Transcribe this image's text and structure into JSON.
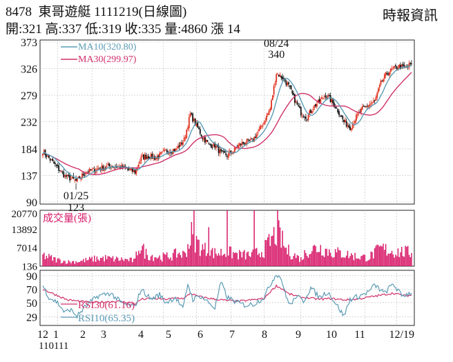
{
  "header": {
    "code": "8478",
    "name": "東哥遊艇",
    "date_label": "1111219(日線圖)",
    "source": "時報資訊",
    "ohlc": "開:321 高:337 低:319 收:335 量:4860 漲 14"
  },
  "chart_data": [
    {
      "type": "candlestick",
      "y_ticks": [
        373,
        326,
        279,
        232,
        184,
        137,
        90
      ],
      "ylim": [
        90,
        373
      ],
      "x_ticks": [
        "12",
        "1",
        "2",
        "3",
        "4",
        "5",
        "6",
        "7",
        "8",
        "9",
        "10",
        "11",
        "12/19"
      ],
      "x_sub_label": "110111",
      "legend": [
        {
          "label": "MA10(320.80)",
          "color": "#5b9bb5"
        },
        {
          "label": "MA30(299.97)",
          "color": "#d0306a"
        }
      ],
      "annotations": [
        {
          "date": "08/24",
          "value": "340"
        },
        {
          "date": "01/25",
          "value": "123"
        }
      ],
      "up_color": "#e0301e",
      "down_color": "#111111",
      "close_anchors": [
        [
          0,
          180
        ],
        [
          8,
          160
        ],
        [
          18,
          136
        ],
        [
          27,
          127
        ],
        [
          35,
          143
        ],
        [
          45,
          149
        ],
        [
          55,
          154
        ],
        [
          65,
          151
        ],
        [
          75,
          143
        ],
        [
          80,
          168
        ],
        [
          85,
          171
        ],
        [
          92,
          168
        ],
        [
          100,
          180
        ],
        [
          108,
          182
        ],
        [
          115,
          200
        ],
        [
          120,
          245
        ],
        [
          125,
          225
        ],
        [
          130,
          205
        ],
        [
          135,
          192
        ],
        [
          140,
          190
        ],
        [
          145,
          176
        ],
        [
          150,
          173
        ],
        [
          155,
          180
        ],
        [
          160,
          192
        ],
        [
          165,
          196
        ],
        [
          170,
          198
        ],
        [
          175,
          213
        ],
        [
          180,
          232
        ],
        [
          185,
          255
        ],
        [
          190,
          318
        ],
        [
          195,
          310
        ],
        [
          200,
          295
        ],
        [
          205,
          270
        ],
        [
          210,
          248
        ],
        [
          215,
          240
        ],
        [
          220,
          258
        ],
        [
          225,
          268
        ],
        [
          230,
          280
        ],
        [
          235,
          268
        ],
        [
          240,
          252
        ],
        [
          245,
          232
        ],
        [
          250,
          222
        ],
        [
          255,
          240
        ],
        [
          260,
          255
        ],
        [
          265,
          262
        ],
        [
          270,
          268
        ],
        [
          275,
          300
        ],
        [
          280,
          318
        ],
        [
          285,
          325
        ],
        [
          290,
          330
        ],
        [
          295,
          327
        ],
        [
          300,
          335
        ]
      ],
      "ma10_last": 320.8,
      "ma30_last": 299.97
    },
    {
      "type": "bar",
      "title": "成交量(張)",
      "y_ticks": [
        20770,
        13892,
        7014,
        136
      ],
      "ylim": [
        0,
        20770
      ],
      "color": "#d81b6a",
      "last_volume": 4860,
      "volume_anchors": [
        [
          0,
          4000
        ],
        [
          10,
          2500
        ],
        [
          20,
          1600
        ],
        [
          30,
          1800
        ],
        [
          40,
          2600
        ],
        [
          50,
          3000
        ],
        [
          60,
          2600
        ],
        [
          70,
          2300
        ],
        [
          75,
          2000
        ],
        [
          78,
          8000
        ],
        [
          85,
          4200
        ],
        [
          95,
          3300
        ],
        [
          105,
          3800
        ],
        [
          110,
          4800
        ],
        [
          115,
          4300
        ],
        [
          118,
          7500
        ],
        [
          121,
          11500
        ],
        [
          125,
          9000
        ],
        [
          130,
          6500
        ],
        [
          140,
          4800
        ],
        [
          150,
          5200
        ],
        [
          160,
          4200
        ],
        [
          170,
          4100
        ],
        [
          180,
          6000
        ],
        [
          185,
          9000
        ],
        [
          190,
          12500
        ],
        [
          193,
          11000
        ],
        [
          198,
          6000
        ],
        [
          205,
          4000
        ],
        [
          210,
          2600
        ],
        [
          215,
          5800
        ],
        [
          225,
          7000
        ],
        [
          235,
          5200
        ],
        [
          245,
          4600
        ],
        [
          255,
          3600
        ],
        [
          265,
          3200
        ],
        [
          275,
          6500
        ],
        [
          285,
          5500
        ],
        [
          300,
          5000
        ]
      ],
      "spikes": [
        [
          123,
          20770
        ],
        [
          150,
          20770
        ],
        [
          172,
          20770
        ],
        [
          191,
          20770
        ],
        [
          135,
          14500
        ]
      ]
    },
    {
      "type": "line",
      "y_ticks": [
        90,
        70,
        50,
        29
      ],
      "ylim": [
        16,
        98
      ],
      "series": [
        {
          "name": "RSI30(61.16)",
          "color": "#d0306a",
          "anchors": [
            [
              0,
              70
            ],
            [
              10,
              62
            ],
            [
              20,
              54
            ],
            [
              30,
              52
            ],
            [
              40,
              50
            ],
            [
              50,
              51
            ],
            [
              60,
              52
            ],
            [
              70,
              50
            ],
            [
              75,
              48
            ],
            [
              80,
              55
            ],
            [
              90,
              56
            ],
            [
              100,
              55
            ],
            [
              110,
              57
            ],
            [
              115,
              56
            ],
            [
              120,
              64
            ],
            [
              125,
              60
            ],
            [
              130,
              58
            ],
            [
              140,
              55
            ],
            [
              150,
              53
            ],
            [
              160,
              52
            ],
            [
              170,
              54
            ],
            [
              180,
              56
            ],
            [
              185,
              66
            ],
            [
              190,
              75
            ],
            [
              195,
              70
            ],
            [
              200,
              63
            ],
            [
              210,
              58
            ],
            [
              215,
              57
            ],
            [
              225,
              55
            ],
            [
              235,
              56
            ],
            [
              245,
              54
            ],
            [
              255,
              55
            ],
            [
              265,
              58
            ],
            [
              275,
              61
            ],
            [
              285,
              64
            ],
            [
              295,
              60
            ],
            [
              300,
              61
            ]
          ]
        },
        {
          "name": "RSI10(65.35)",
          "color": "#5b9bb5",
          "anchors": [
            [
              0,
              75
            ],
            [
              5,
              58
            ],
            [
              12,
              50
            ],
            [
              18,
              35
            ],
            [
              22,
              40
            ],
            [
              28,
              30
            ],
            [
              35,
              45
            ],
            [
              45,
              60
            ],
            [
              55,
              64
            ],
            [
              65,
              48
            ],
            [
              75,
              44
            ],
            [
              80,
              70
            ],
            [
              88,
              55
            ],
            [
              95,
              62
            ],
            [
              100,
              50
            ],
            [
              108,
              58
            ],
            [
              114,
              40
            ],
            [
              118,
              78
            ],
            [
              122,
              55
            ],
            [
              128,
              60
            ],
            [
              135,
              50
            ],
            [
              140,
              42
            ],
            [
              145,
              80
            ],
            [
              150,
              58
            ],
            [
              158,
              50
            ],
            [
              165,
              46
            ],
            [
              172,
              48
            ],
            [
              180,
              58
            ],
            [
              186,
              80
            ],
            [
              190,
              93
            ],
            [
              194,
              86
            ],
            [
              198,
              58
            ],
            [
              202,
              46
            ],
            [
              206,
              60
            ],
            [
              212,
              52
            ],
            [
              218,
              72
            ],
            [
              225,
              58
            ],
            [
              232,
              66
            ],
            [
              240,
              44
            ],
            [
              245,
              30
            ],
            [
              250,
              55
            ],
            [
              258,
              60
            ],
            [
              265,
              66
            ],
            [
              270,
              76
            ],
            [
              278,
              64
            ],
            [
              285,
              78
            ],
            [
              292,
              60
            ],
            [
              300,
              65
            ]
          ]
        }
      ]
    }
  ]
}
